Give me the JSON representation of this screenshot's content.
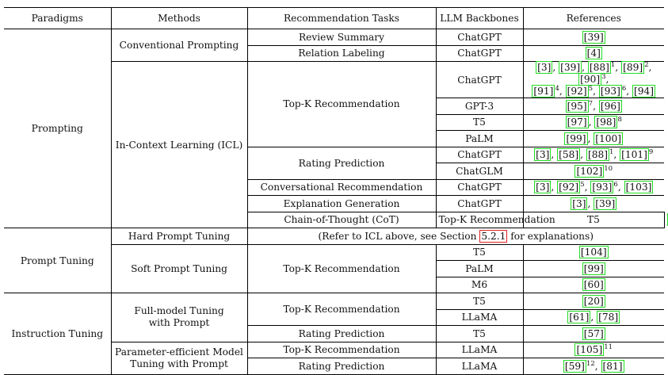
{
  "headers": {
    "paradigm": "Paradigms",
    "method": "Methods",
    "task": "Recommendation Tasks",
    "backbone": "LLM Backbones",
    "references": "References"
  },
  "paradigms": {
    "prompting": "Prompting",
    "prompt_tuning": "Prompt Tuning",
    "instruction_tuning": "Instruction Tuning"
  },
  "methods": {
    "conventional": "Conventional Prompting",
    "icl": "In-Context Learning (ICL)",
    "cot": "Chain-of-Thought (CoT)",
    "hard": "Hard Prompt Tuning",
    "soft": "Soft Prompt Tuning",
    "full_model_line1": "Full-model Tuning",
    "full_model_line2": "with Prompt",
    "peft_line1": "Parameter-efficient Model",
    "peft_line2": "Tuning with Prompt"
  },
  "tasks": {
    "review_summary": "Review Summary",
    "relation_labeling": "Relation Labeling",
    "topk": "Top-K Recommendation",
    "rating": "Rating Prediction",
    "conversational": "Conversational Recommendation",
    "explanation": "Explanation Generation"
  },
  "backbones": {
    "chatgpt": "ChatGPT",
    "gpt3": "GPT-3",
    "t5": "T5",
    "palm": "PaLM",
    "chatglm": "ChatGLM",
    "m6": "M6",
    "llama": "LLaMA"
  },
  "hard_prompt_note": {
    "before": "(Refer to ICL above, see Section ",
    "section": "5.2.1",
    "after": " for explanations)"
  },
  "refs": {
    "r39": "[39]",
    "r4": "[4]",
    "r3": "[3]",
    "r88": "[88]",
    "r89": "[89]",
    "r90": "[90]",
    "r91": "[91]",
    "r92": "[92]",
    "r93": "[93]",
    "r94": "[94]",
    "r95": "[95]",
    "r96": "[96]",
    "r97": "[97]",
    "r98": "[98]",
    "r99": "[99]",
    "r100": "[100]",
    "r58": "[58]",
    "r101": "[101]",
    "r102": "[102]",
    "r103": "[103]",
    "r20": "[20]",
    "r104": "[104]",
    "r60": "[60]",
    "r61": "[61]",
    "r78": "[78]",
    "r57": "[57]",
    "r105": "[105]",
    "r59": "[59]",
    "r81": "[81]"
  },
  "sups": {
    "s1": "1",
    "s2": "2",
    "s3": "3",
    "s4": "4",
    "s5": "5",
    "s6": "6",
    "s7": "7",
    "s8": "8",
    "s9": "9",
    "s10": "10",
    "s11": "11",
    "s12": "12"
  },
  "sep": {
    "comma": ", ",
    "comma_tight": ","
  }
}
